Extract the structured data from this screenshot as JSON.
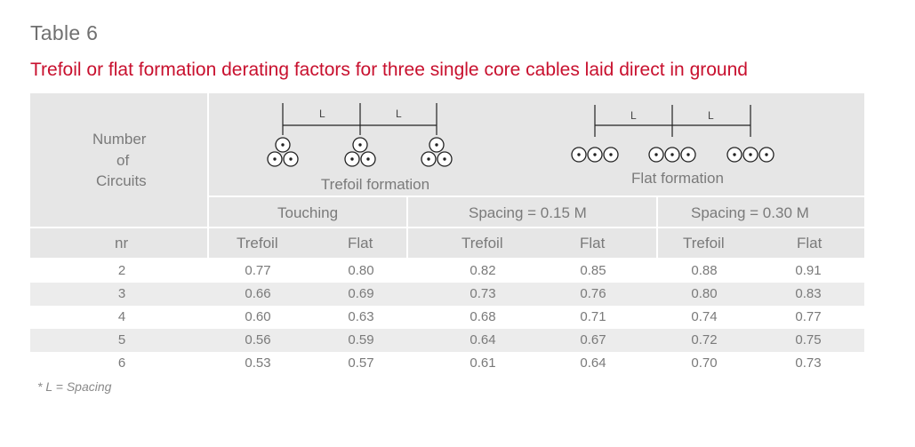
{
  "table_label": "Table 6",
  "title": "Trefoil or flat formation derating factors for three single core cables laid direct in ground",
  "header": {
    "number_of_circuits": [
      "Number",
      "of",
      "Circuits"
    ],
    "trefoil_caption": "Trefoil formation",
    "flat_caption": "Flat formation",
    "spacing_symbol": "L",
    "groups": [
      "Touching",
      "Spacing = 0.15 M",
      "Spacing = 0.30 M"
    ],
    "nr_label": "nr",
    "sub_columns": [
      "Trefoil",
      "Flat",
      "Trefoil",
      "Flat",
      "Trefoil",
      "Flat"
    ]
  },
  "rows": [
    {
      "nr": "2",
      "values": [
        "0.77",
        "0.80",
        "0.82",
        "0.85",
        "0.88",
        "0.91"
      ]
    },
    {
      "nr": "3",
      "values": [
        "0.66",
        "0.69",
        "0.73",
        "0.76",
        "0.80",
        "0.83"
      ]
    },
    {
      "nr": "4",
      "values": [
        "0.60",
        "0.63",
        "0.68",
        "0.71",
        "0.74",
        "0.77"
      ]
    },
    {
      "nr": "5",
      "values": [
        "0.56",
        "0.59",
        "0.64",
        "0.67",
        "0.72",
        "0.75"
      ]
    },
    {
      "nr": "6",
      "values": [
        "0.53",
        "0.57",
        "0.61",
        "0.64",
        "0.70",
        "0.73"
      ]
    }
  ],
  "footnote": "* L = Spacing"
}
